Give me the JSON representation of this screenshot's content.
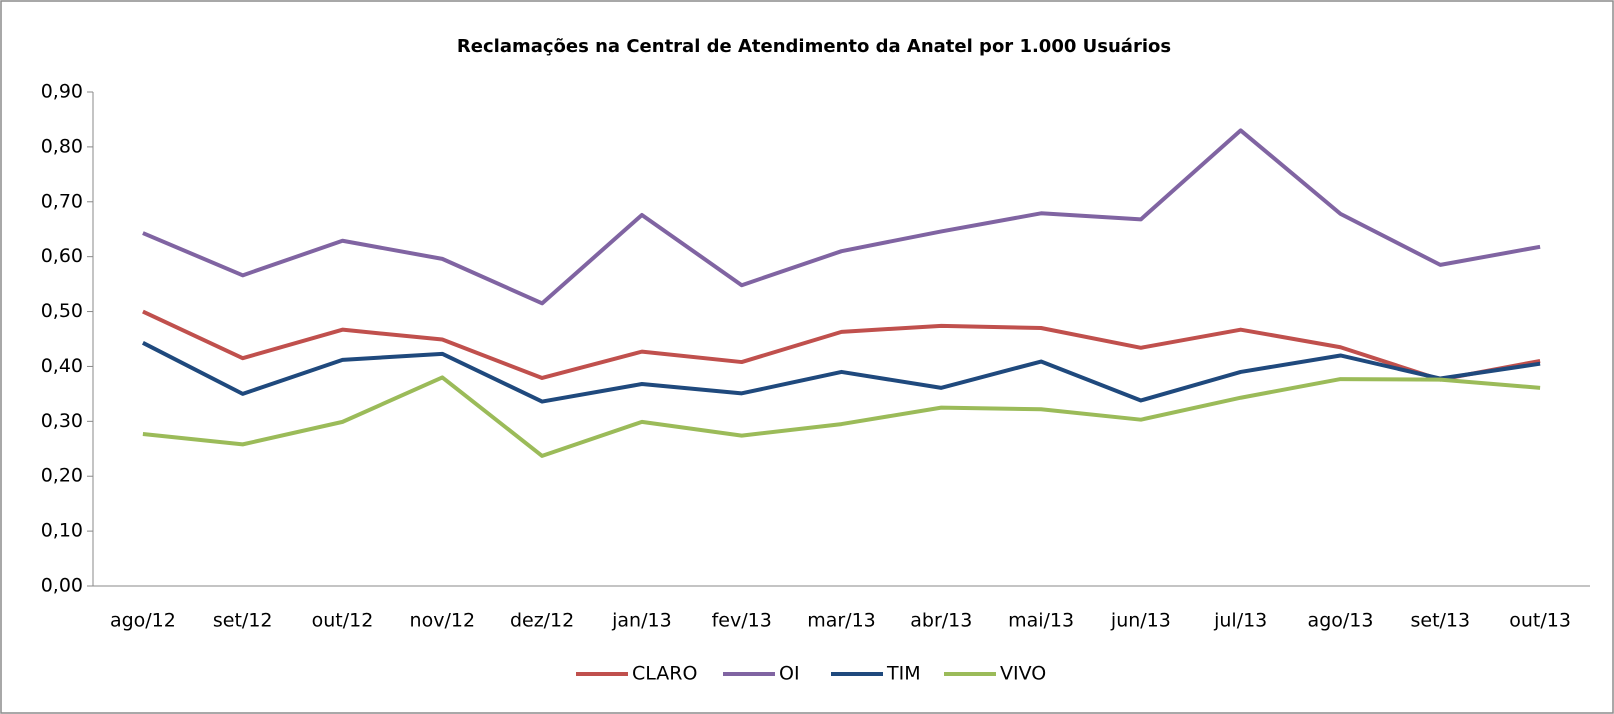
{
  "chart_data": {
    "type": "line",
    "title": "Reclamações  na Central de Atendimento da Anatel por 1.000 Usuários",
    "categories": [
      "ago/12",
      "set/12",
      "out/12",
      "nov/12",
      "dez/12",
      "jan/13",
      "fev/13",
      "mar/13",
      "abr/13",
      "mai/13",
      "jun/13",
      "jul/13",
      "ago/13",
      "set/13",
      "out/13"
    ],
    "series": [
      {
        "name": "CLARO",
        "color": "#c0504d",
        "values": [
          0.5,
          0.415,
          0.467,
          0.449,
          0.379,
          0.427,
          0.408,
          0.463,
          0.474,
          0.47,
          0.434,
          0.467,
          0.435,
          0.376,
          0.41
        ]
      },
      {
        "name": "OI",
        "color": "#8064a2",
        "values": [
          0.643,
          0.566,
          0.629,
          0.596,
          0.515,
          0.676,
          0.548,
          0.61,
          0.646,
          0.679,
          0.668,
          0.83,
          0.678,
          0.585,
          0.618
        ]
      },
      {
        "name": "TIM",
        "color": "#1f497d",
        "values": [
          0.443,
          0.35,
          0.412,
          0.423,
          0.336,
          0.368,
          0.351,
          0.39,
          0.361,
          0.409,
          0.338,
          0.39,
          0.42,
          0.378,
          0.405
        ]
      },
      {
        "name": "VIVO",
        "color": "#9bbb59",
        "values": [
          0.277,
          0.258,
          0.299,
          0.38,
          0.237,
          0.299,
          0.274,
          0.295,
          0.325,
          0.322,
          0.303,
          0.343,
          0.377,
          0.376,
          0.361
        ]
      }
    ],
    "ylim": [
      0,
      0.9
    ],
    "yticks": [
      {
        "value": 0,
        "label": "0,00"
      },
      {
        "value": 0.1,
        "label": "0,10"
      },
      {
        "value": 0.2,
        "label": "0,20"
      },
      {
        "value": 0.3,
        "label": "0,30"
      },
      {
        "value": 0.4,
        "label": "0,40"
      },
      {
        "value": 0.5,
        "label": "0,50"
      },
      {
        "value": 0.6,
        "label": "0,60"
      },
      {
        "value": 0.7,
        "label": "0,70"
      },
      {
        "value": 0.8,
        "label": "0,80"
      },
      {
        "value": 0.9,
        "label": "0,90"
      }
    ],
    "legend": "bottom"
  }
}
